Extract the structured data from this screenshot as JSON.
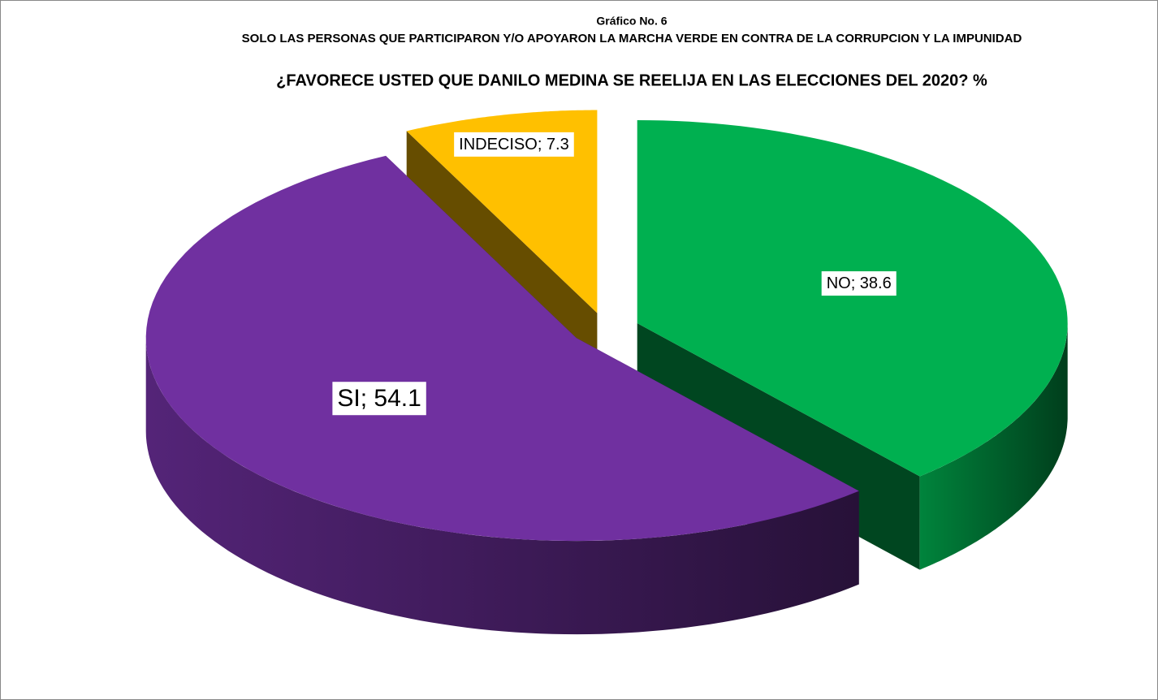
{
  "chart_data": {
    "type": "pie3d",
    "title": "Gráfico No. 6",
    "subtitle": "SOLO LAS PERSONAS QUE PARTICIPARON  Y/O APOYARON LA MARCHA VERDE EN CONTRA DE LA CORRUPCION Y LA IMPUNIDAD",
    "question": "¿FAVORECE USTED QUE DANILO MEDINA SE REELIJA EN LAS ELECCIONES DEL 2020? %",
    "categories": [
      "NO",
      "SI",
      "INDECISO"
    ],
    "values": [
      38.6,
      54.1,
      7.3
    ],
    "value_labels": [
      "NO; 38.6",
      "SI; 54.1",
      "INDECISO; 7.3"
    ],
    "colors": [
      "#00b050",
      "#7030a0",
      "#ffc000"
    ]
  }
}
